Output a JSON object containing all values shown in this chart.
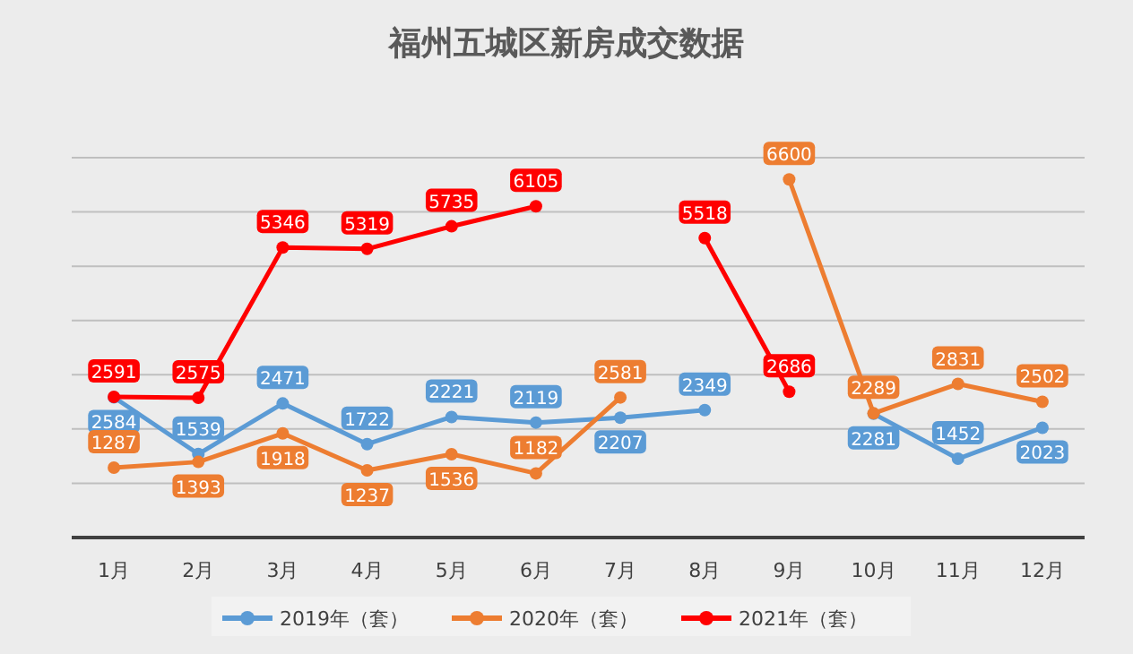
{
  "chart_data": {
    "type": "line",
    "title": "福州五城区新房成交数据",
    "categories": [
      "1月",
      "2月",
      "3月",
      "4月",
      "5月",
      "6月",
      "7月",
      "8月",
      "9月",
      "10月",
      "11月",
      "12月"
    ],
    "series": [
      {
        "name": "2019年（套）",
        "color": "#5b9bd5",
        "values": [
          2584,
          1539,
          2471,
          1722,
          2221,
          2119,
          2207,
          2349,
          null,
          2281,
          1452,
          2023
        ]
      },
      {
        "name": "2020年（套）",
        "color": "#ed7d31",
        "values": [
          1287,
          1393,
          1918,
          1237,
          1536,
          1182,
          2581,
          null,
          6600,
          2289,
          2831,
          2502
        ]
      },
      {
        "name": "2021年（套）",
        "color": "#ff0000",
        "values": [
          2591,
          2575,
          5346,
          5319,
          5735,
          6105,
          null,
          5518,
          2686,
          null,
          null,
          null
        ]
      }
    ],
    "ylim": [
      0,
      7000
    ],
    "yticks": [
      {
        "value": 0,
        "label": null
      },
      {
        "value": 1000,
        "label": null
      },
      {
        "value": 2000,
        "label": null
      },
      {
        "value": 3000,
        "label": null
      },
      {
        "value": 4000,
        "label": null
      },
      {
        "value": 5000,
        "label": null
      },
      {
        "value": 6000,
        "label": null
      },
      {
        "value": 7000,
        "label": null
      }
    ],
    "tick_labels": "x",
    "grid": "y",
    "legend": "bottom",
    "marker": "circle",
    "data_labels": true
  }
}
